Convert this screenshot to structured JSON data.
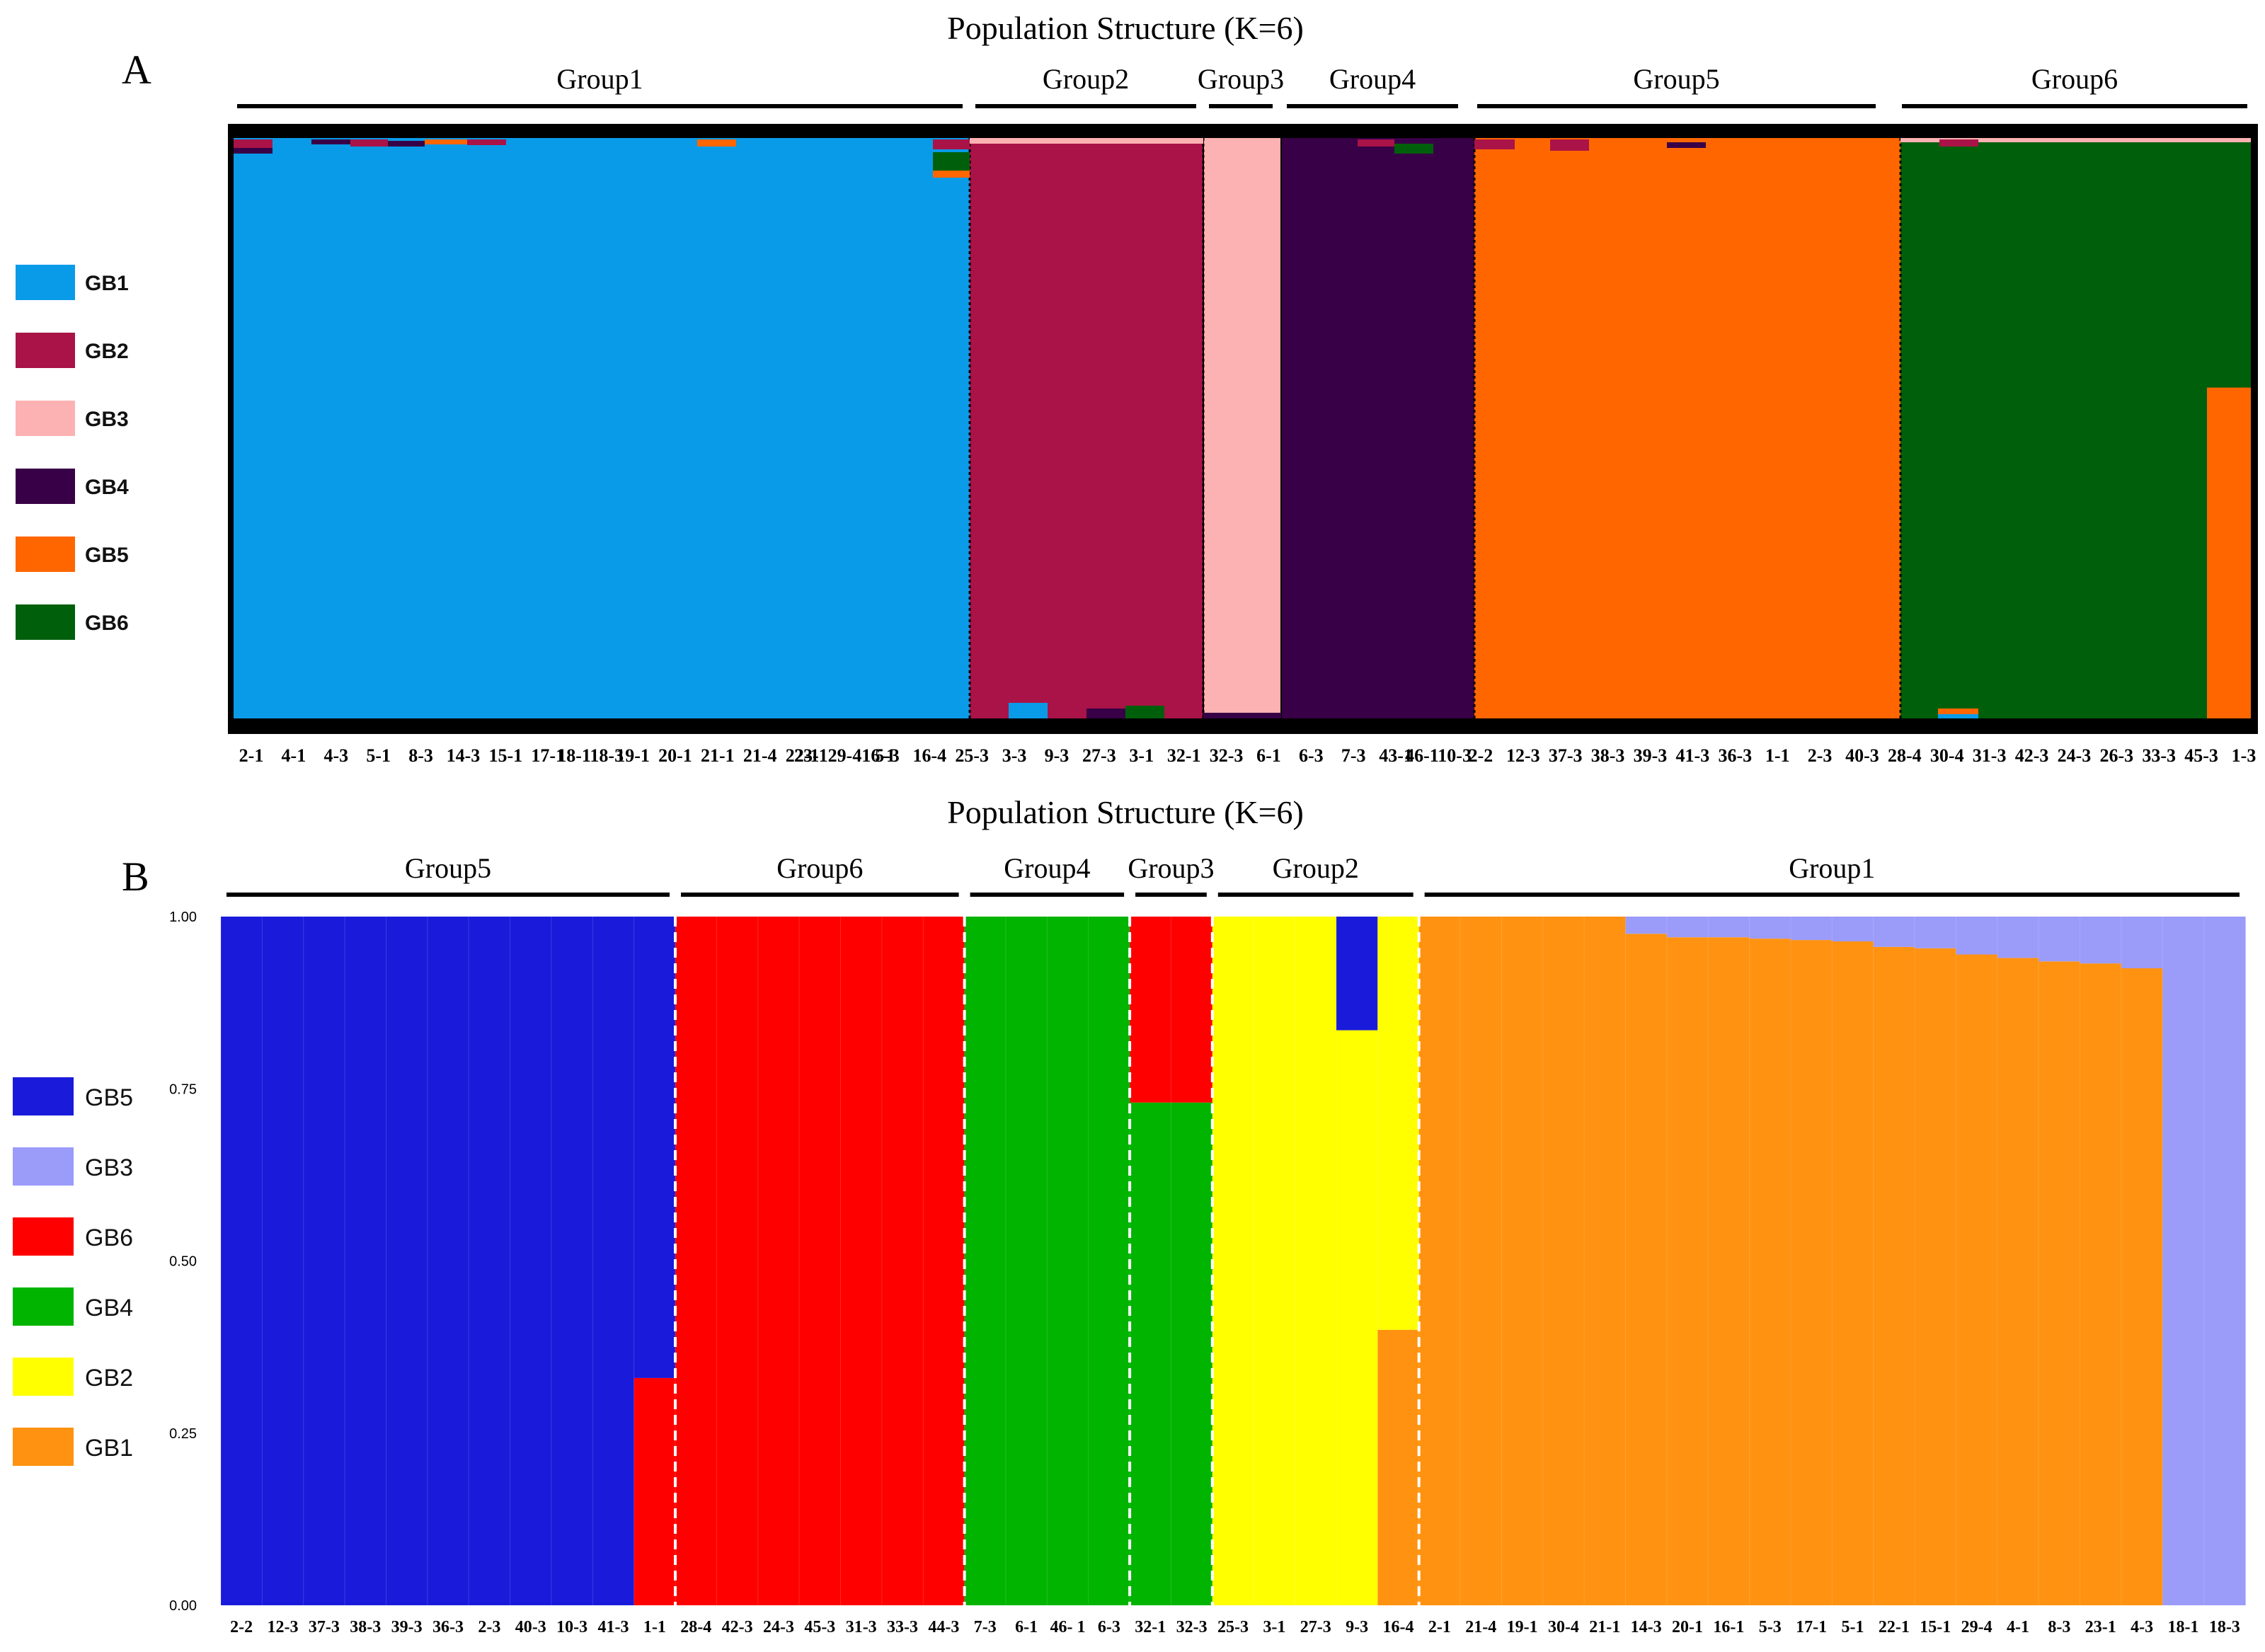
{
  "chart_data": [
    {
      "type": "stacked-bar",
      "panel": "A",
      "title": "Population Structure (K=6)",
      "legend": [
        {
          "name": "GB1",
          "color": "#0A9BE8"
        },
        {
          "name": "GB2",
          "color": "#AA1347"
        },
        {
          "name": "GB3",
          "color": "#FCB2B2"
        },
        {
          "name": "GB4",
          "color": "#380046"
        },
        {
          "name": "GB5",
          "color": "#FF6600"
        },
        {
          "name": "GB6",
          "color": "#005F0B"
        }
      ],
      "groups": [
        {
          "name": "Group1",
          "samples": [
            "2-1",
            "4-1",
            "4-3",
            "5-1",
            "8-3",
            "14-3",
            "15-1",
            "17-1",
            "18-1",
            "18-3",
            "19-1",
            "20-1",
            "21-1",
            "21-4",
            "22-1",
            "23-1",
            "29-4",
            "16-1",
            "5-3"
          ]
        },
        {
          "name": "Group2",
          "samples": [
            "16-4",
            "25-3",
            "3-3",
            "9-3",
            "27-3",
            "3-1"
          ]
        },
        {
          "name": "Group3",
          "samples": [
            "32-1",
            "32-3"
          ]
        },
        {
          "name": "Group4",
          "samples": [
            "6-1",
            "6-3",
            "7-3",
            "43-1",
            "46-1"
          ]
        },
        {
          "name": "Group5",
          "samples": [
            "10-3",
            "2-2",
            "12-3",
            "37-3",
            "38-3",
            "39-3",
            "41-3",
            "36-3",
            "1-1",
            "2-3",
            "40-3"
          ]
        },
        {
          "name": "Group6",
          "samples": [
            "28-4",
            "30-4",
            "31-3",
            "42-3",
            "24-3",
            "26-3",
            "33-3",
            "45-3",
            "1-3"
          ]
        }
      ],
      "tick_labels": [
        "2-1",
        "4-1",
        "4-3",
        "5-1",
        "8-3",
        "14-3",
        "15-1",
        "17-1",
        "18-118-3",
        "19-1",
        "20-1",
        "21-1",
        "21-4",
        "22-1",
        "23-129-416-1",
        "5-3",
        "16-4",
        "25-3",
        "3-3",
        "9-3",
        "27-3",
        "3-1",
        "32-1",
        "32-3",
        "6-1",
        "6-3",
        "7-3",
        "43-1",
        "46-110-3",
        "2-2",
        "12-3",
        "37-3",
        "38-3",
        "39-3",
        "41-3",
        "36-3",
        "1-1",
        "2-3",
        "40-3",
        "28-4",
        "30-4",
        "31-3",
        "42-3",
        "24-3",
        "26-3",
        "33-3",
        "45-3",
        "1-3"
      ],
      "minor_share_note": "",
      "group_majority": {
        "Group1": "GB1",
        "Group2": "GB2",
        "Group3": "GB3",
        "Group4": "GB4",
        "Group5": "GB5",
        "Group6": "GB6"
      },
      "special_bars": [
        {
          "sample": "1-3",
          "GB6": 0.43,
          "GB5": 0.57
        }
      ]
    },
    {
      "type": "stacked-bar",
      "panel": "B",
      "title": "Population Structure (K=6)",
      "ylim": [
        0,
        1
      ],
      "yticks": [
        "0.00",
        "0.25",
        "0.50",
        "0.75",
        "1.00"
      ],
      "legend": [
        {
          "name": "GB5",
          "color": "#1A1ADB"
        },
        {
          "name": "GB3",
          "color": "#9B9BFA"
        },
        {
          "name": "GB6",
          "color": "#FF0000"
        },
        {
          "name": "GB4",
          "color": "#00B400"
        },
        {
          "name": "GB2",
          "color": "#FFFF00"
        },
        {
          "name": "GB1",
          "color": "#FF9210"
        }
      ],
      "groups": [
        {
          "name": "Group5",
          "samples": [
            "2-2",
            "12-3",
            "37-3",
            "38-3",
            "39-3",
            "36-3",
            "2-3",
            "40-3",
            "10-3",
            "41-3",
            "1-1"
          ]
        },
        {
          "name": "Group6",
          "samples": [
            "28-4",
            "42-3",
            "24-3",
            "45-3",
            "31-3",
            "33-3",
            "44-3"
          ]
        },
        {
          "name": "Group4",
          "samples": [
            "7-3",
            "6-1",
            "46-1",
            "6-3"
          ]
        },
        {
          "name": "Group3",
          "samples": [
            "32-1",
            "32-3"
          ]
        },
        {
          "name": "Group2",
          "samples": [
            "25-3",
            "3-1",
            "27-3",
            "9-3",
            "16-4"
          ]
        },
        {
          "name": "Group1",
          "samples": [
            "2-1",
            "21-4",
            "19-1",
            "30-4",
            "21-1",
            "14-3",
            "20-1",
            "16-1",
            "5-3",
            "17-1",
            "5-1",
            "22-1",
            "15-1",
            "29-4",
            "4-1",
            "8-3",
            "23-1",
            "4-3",
            "18-1",
            "18-3"
          ]
        }
      ],
      "tick_labels": [
        "2-2",
        "12-3",
        "37-3",
        "38-3",
        "39-3",
        "36-3",
        "2-3",
        "40-3",
        "10-3",
        "41-3",
        "1-1",
        "28-4",
        "42-3",
        "24-3",
        "45-3",
        "31-3",
        "33-3",
        "44-3",
        "7-3",
        "6-1",
        "46- 1",
        "6-3",
        "32-1",
        "32-3",
        "25-3",
        "3-1",
        "27-3",
        "9-3",
        "16-4",
        "2-1",
        "21-4",
        "19-1",
        "30-4",
        "21-1",
        "14-3",
        "20-1",
        "16-1",
        "5-3",
        "17-1",
        "5-1",
        "22-1",
        "15-1",
        "29-4",
        "4-1",
        "8-3",
        "23-1",
        "4-3",
        "18-1",
        "18-3"
      ],
      "bars": [
        {
          "sample": "2-2",
          "GB5": 1.0
        },
        {
          "sample": "12-3",
          "GB5": 1.0
        },
        {
          "sample": "37-3",
          "GB5": 1.0
        },
        {
          "sample": "38-3",
          "GB5": 1.0
        },
        {
          "sample": "39-3",
          "GB5": 1.0
        },
        {
          "sample": "36-3",
          "GB5": 1.0
        },
        {
          "sample": "2-3",
          "GB5": 1.0
        },
        {
          "sample": "40-3",
          "GB5": 1.0
        },
        {
          "sample": "10-3",
          "GB5": 1.0
        },
        {
          "sample": "41-3",
          "GB5": 1.0
        },
        {
          "sample": "1-1",
          "GB6": 0.33,
          "GB5": 0.67
        },
        {
          "sample": "28-4",
          "GB6": 1.0
        },
        {
          "sample": "42-3",
          "GB6": 1.0
        },
        {
          "sample": "24-3",
          "GB6": 1.0
        },
        {
          "sample": "45-3",
          "GB6": 1.0
        },
        {
          "sample": "31-3",
          "GB6": 1.0
        },
        {
          "sample": "33-3",
          "GB6": 1.0
        },
        {
          "sample": "44-3",
          "GB6": 1.0
        },
        {
          "sample": "7-3",
          "GB4": 1.0
        },
        {
          "sample": "6-1",
          "GB4": 1.0
        },
        {
          "sample": "46-1",
          "GB4": 1.0
        },
        {
          "sample": "6-3",
          "GB4": 1.0
        },
        {
          "sample": "32-1",
          "GB4": 0.73,
          "GB6": 0.27
        },
        {
          "sample": "32-3",
          "GB4": 0.73,
          "GB6": 0.27
        },
        {
          "sample": "25-3",
          "GB2": 1.0
        },
        {
          "sample": "3-1",
          "GB2": 1.0
        },
        {
          "sample": "27-3",
          "GB2": 1.0
        },
        {
          "sample": "9-3",
          "GB2": 0.835,
          "GB5": 0.165
        },
        {
          "sample": "16-4",
          "GB1": 0.4,
          "GB2": 0.6
        },
        {
          "sample": "2-1",
          "GB1": 1.0
        },
        {
          "sample": "21-4",
          "GB1": 1.0
        },
        {
          "sample": "19-1",
          "GB1": 1.0
        },
        {
          "sample": "30-4",
          "GB1": 1.0
        },
        {
          "sample": "21-1",
          "GB1": 1.0
        },
        {
          "sample": "14-3",
          "GB1": 0.975,
          "GB3": 0.025
        },
        {
          "sample": "20-1",
          "GB1": 0.97,
          "GB3": 0.03
        },
        {
          "sample": "16-1",
          "GB1": 0.97,
          "GB3": 0.03
        },
        {
          "sample": "5-3",
          "GB1": 0.968,
          "GB3": 0.032
        },
        {
          "sample": "17-1",
          "GB1": 0.966,
          "GB3": 0.034
        },
        {
          "sample": "5-1",
          "GB1": 0.964,
          "GB3": 0.036
        },
        {
          "sample": "22-1",
          "GB1": 0.956,
          "GB3": 0.044
        },
        {
          "sample": "15-1",
          "GB1": 0.954,
          "GB3": 0.046
        },
        {
          "sample": "29-4",
          "GB1": 0.945,
          "GB3": 0.055
        },
        {
          "sample": "4-1",
          "GB1": 0.94,
          "GB3": 0.06
        },
        {
          "sample": "8-3",
          "GB1": 0.935,
          "GB3": 0.065
        },
        {
          "sample": "23-1",
          "GB1": 0.932,
          "GB3": 0.068
        },
        {
          "sample": "4-3",
          "GB1": 0.925,
          "GB3": 0.075
        },
        {
          "sample": "18-1",
          "GB3": 1.0
        },
        {
          "sample": "18-3",
          "GB3": 1.0
        }
      ]
    }
  ],
  "panel_letters": {
    "a": "A",
    "b": "B"
  }
}
